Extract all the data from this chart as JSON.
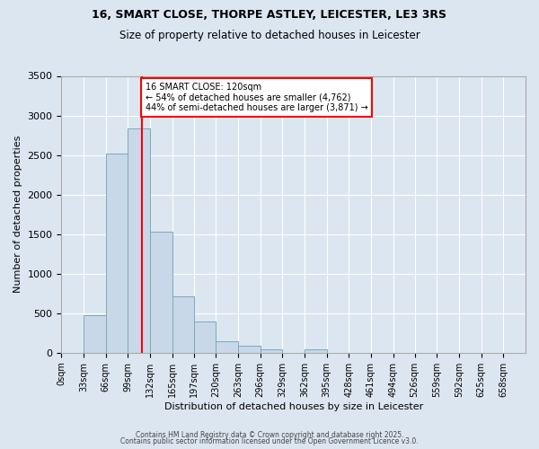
{
  "title_line1": "16, SMART CLOSE, THORPE ASTLEY, LEICESTER, LE3 3RS",
  "title_line2": "Size of property relative to detached houses in Leicester",
  "xlabel": "Distribution of detached houses by size in Leicester",
  "ylabel": "Number of detached properties",
  "bar_values": [
    0,
    480,
    2520,
    2840,
    1530,
    710,
    400,
    150,
    85,
    45,
    0,
    45,
    0,
    0,
    0,
    0,
    0,
    0,
    0,
    0
  ],
  "bar_labels": [
    "0sqm",
    "33sqm",
    "66sqm",
    "99sqm",
    "132sqm",
    "165sqm",
    "197sqm",
    "230sqm",
    "263sqm",
    "296sqm",
    "329sqm",
    "362sqm",
    "395sqm",
    "428sqm",
    "461sqm",
    "494sqm",
    "526sqm",
    "559sqm",
    "592sqm",
    "625sqm",
    "658sqm"
  ],
  "bin_edges": [
    0,
    33,
    66,
    99,
    132,
    165,
    197,
    230,
    263,
    296,
    329,
    362,
    395,
    428,
    461,
    494,
    526,
    559,
    592,
    625,
    658
  ],
  "bar_color": "#c8d8e8",
  "bar_edge_color": "#7aaabb",
  "background_color": "#dce6f0",
  "grid_color": "#ffffff",
  "vline_x": 120,
  "vline_color": "red",
  "annotation_text": "16 SMART CLOSE: 120sqm\n← 54% of detached houses are smaller (4,762)\n44% of semi-detached houses are larger (3,871) →",
  "annotation_box_color": "white",
  "annotation_box_edge": "red",
  "ylim": [
    0,
    3500
  ],
  "yticks": [
    0,
    500,
    1000,
    1500,
    2000,
    2500,
    3000,
    3500
  ],
  "footer_line1": "Contains HM Land Registry data © Crown copyright and database right 2025.",
  "footer_line2": "Contains public sector information licensed under the Open Government Licence v3.0."
}
